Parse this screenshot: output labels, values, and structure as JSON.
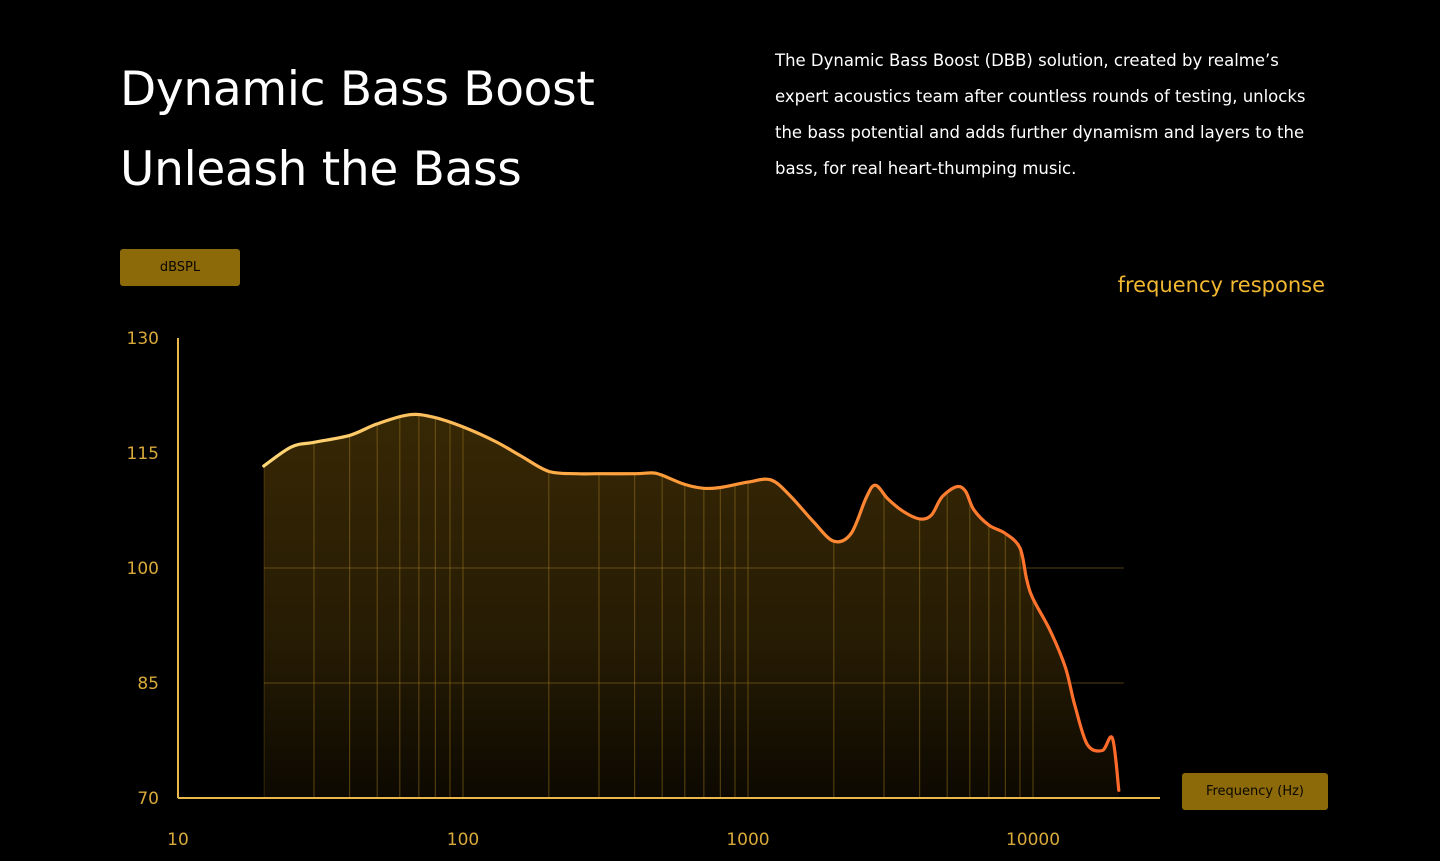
{
  "header": {
    "title_line1": "Dynamic Bass Boost",
    "title_line2": "Unleash the Bass",
    "description": "The Dynamic Bass Boost (DBB) solution, created by realme’s expert acoustics team after countless rounds of testing, unlocks the bass potential and adds further dynamism and layers to the bass, for real heart-thumping music."
  },
  "colors": {
    "accent": "#f2b830",
    "badge": "#8c6a0a",
    "curve_start": "#ffd878",
    "curve_mid": "#ff9e3a",
    "curve_end": "#ff6a2a",
    "axis": "#e8b84a",
    "tick_text": "#d9a93a"
  },
  "chart_data": {
    "type": "area",
    "title": "frequency response",
    "xlabel": "Frequency (Hz)",
    "ylabel": "dBSPL",
    "xscale": "log",
    "xlim": [
      10,
      20000
    ],
    "ylim": [
      70,
      130
    ],
    "xticks": [
      "10",
      "100",
      "1000",
      "10000"
    ],
    "xtick_values": [
      10,
      100,
      1000,
      10000
    ],
    "yticks": [
      "130",
      "115",
      "100",
      "85",
      "70"
    ],
    "ytick_values": [
      130,
      115,
      100,
      85,
      70
    ],
    "gridlines_y": [
      100,
      85
    ],
    "series": [
      {
        "x": [
          20,
          25,
          30,
          40,
          50,
          65,
          80,
          100,
          130,
          160,
          200,
          250,
          300,
          400,
          460,
          500,
          600,
          700,
          800,
          1000,
          1200,
          1400,
          1700,
          2000,
          2300,
          2600,
          2800,
          3100,
          3500,
          4000,
          4400,
          4800,
          5400,
          5800,
          6200,
          7000,
          8000,
          9000,
          9500,
          10000,
          11500,
          13000,
          14000,
          15500,
          17500,
          19000,
          20000
        ],
        "y": [
          113.3,
          115.8,
          116.4,
          117.3,
          118.8,
          120.0,
          119.6,
          118.4,
          116.5,
          114.6,
          112.6,
          112.3,
          112.3,
          112.3,
          112.4,
          112.1,
          110.9,
          110.4,
          110.5,
          111.2,
          111.5,
          109.5,
          106.0,
          103.5,
          104.5,
          109.2,
          110.8,
          109.0,
          107.4,
          106.4,
          106.9,
          109.3,
          110.6,
          110.0,
          107.6,
          105.6,
          104.5,
          102.6,
          98.5,
          96.0,
          91.8,
          87.0,
          82.2,
          77.0,
          76.2,
          77.8,
          71.0
        ]
      }
    ],
    "vertical_lines_hz": [
      20,
      30,
      40,
      50,
      60,
      70,
      80,
      90,
      100,
      200,
      300,
      400,
      500,
      600,
      700,
      800,
      900,
      1000,
      2000,
      3000,
      4000,
      5000,
      6000,
      7000,
      8000,
      9000,
      10000
    ]
  }
}
